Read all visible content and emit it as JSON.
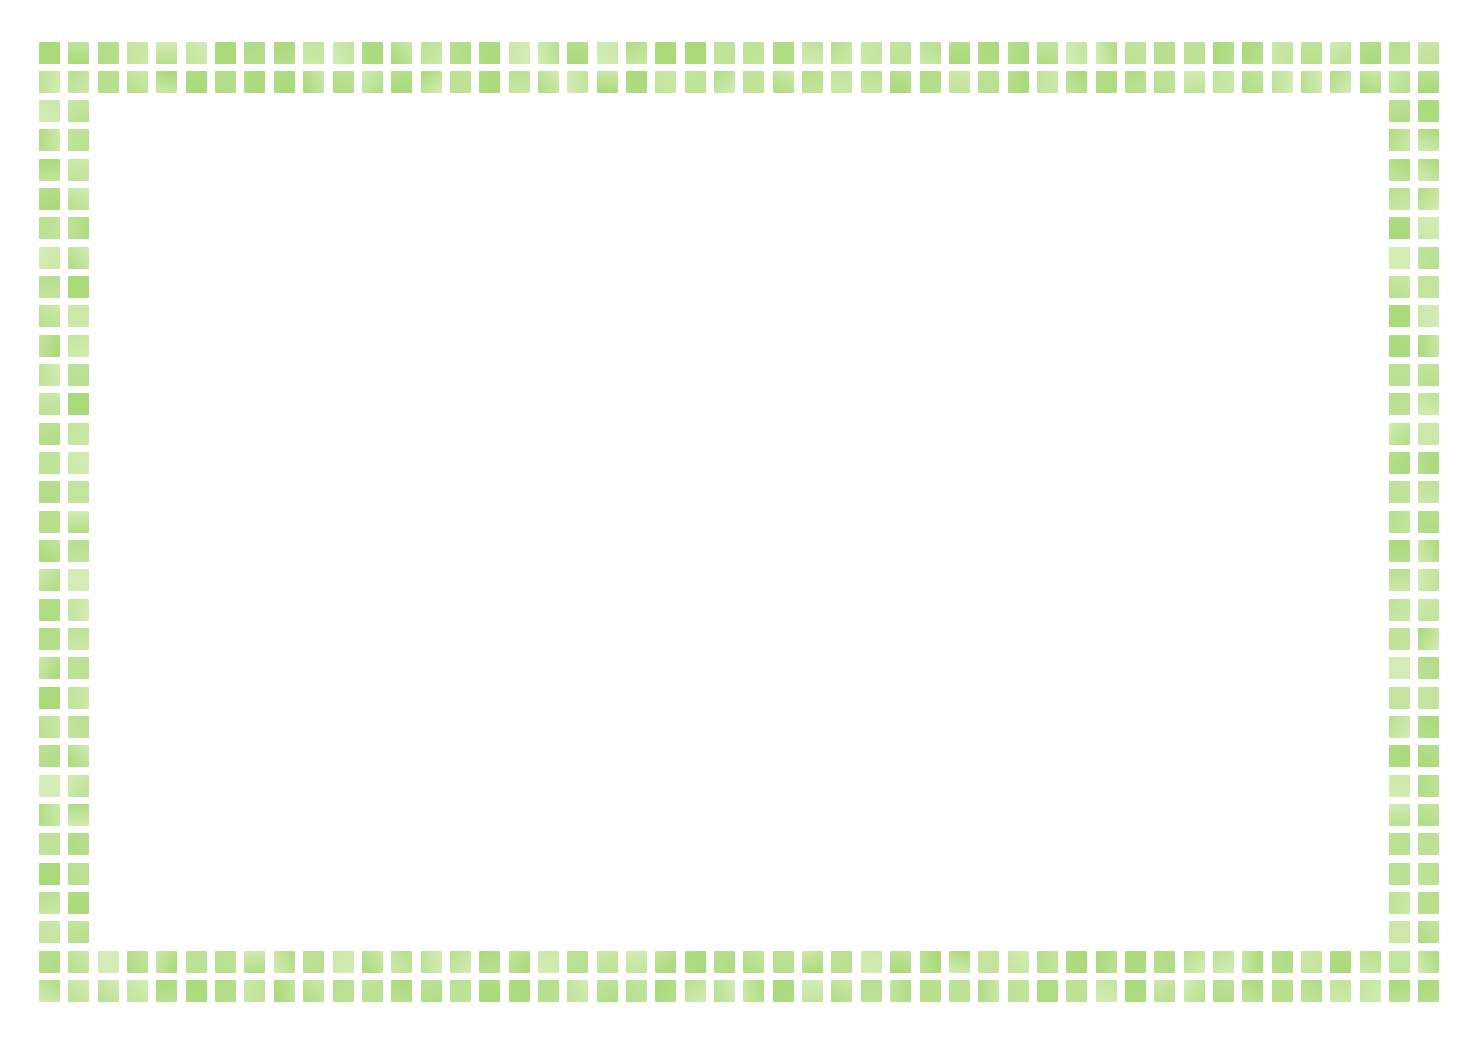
{
  "frame": {
    "style": "double-row mosaic tile border",
    "tile_colors": [
      "#b7df8e",
      "#c2e49c",
      "#cbe8a8",
      "#a9d979",
      "#d3ecb5",
      "#bde195",
      "#b0dc84"
    ],
    "background_color": "#ffffff"
  }
}
